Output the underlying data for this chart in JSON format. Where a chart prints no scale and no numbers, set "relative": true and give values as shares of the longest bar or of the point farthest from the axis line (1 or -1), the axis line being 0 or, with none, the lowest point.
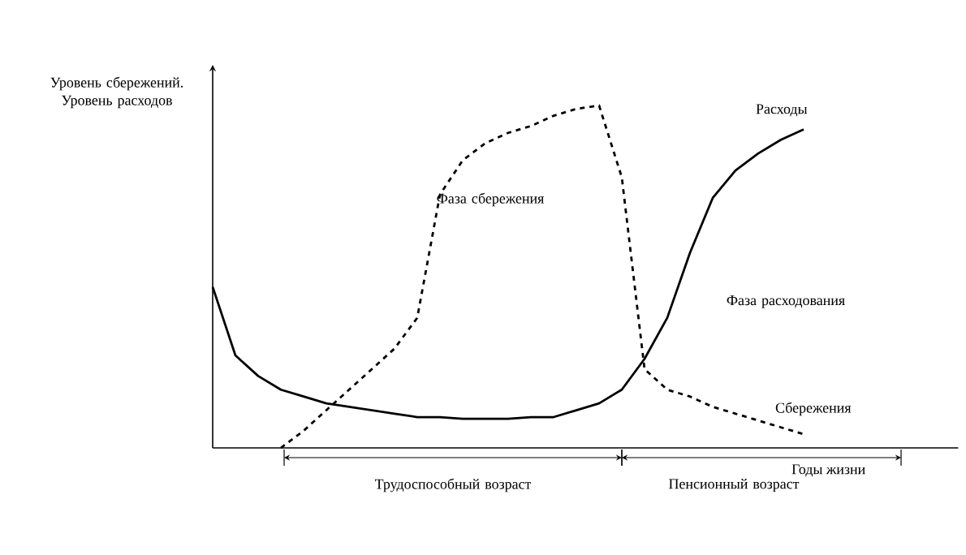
{
  "chart_data": {
    "type": "line",
    "relative": true,
    "tick_labels": false,
    "ylabel": "Уровень сбережений. Уровень расходов",
    "xlabel": "Годы жизни",
    "categories": [
      null,
      null,
      null,
      null,
      null,
      null,
      null,
      null,
      null,
      null,
      null,
      null,
      null,
      null,
      null,
      null,
      null,
      null,
      null,
      null,
      null,
      null,
      null,
      null,
      null,
      null,
      null
    ],
    "series": [
      {
        "name": "Расходы",
        "color": "#000000",
        "line_style": "solid",
        "values": [
          0.47,
          0.27,
          0.21,
          0.17,
          0.15,
          0.13,
          0.12,
          0.11,
          0.1,
          0.09,
          0.09,
          0.085,
          0.085,
          0.085,
          0.09,
          0.09,
          0.11,
          0.13,
          0.17,
          0.26,
          0.38,
          0.57,
          0.73,
          0.81,
          0.86,
          0.9,
          0.93
        ]
      },
      {
        "name": "Сбережения",
        "color": "#000000",
        "line_style": "dashed",
        "values": [
          null,
          null,
          null,
          0.0,
          0.05,
          0.11,
          0.17,
          0.23,
          0.29,
          0.38,
          0.74,
          0.84,
          0.89,
          0.92,
          0.94,
          0.97,
          0.99,
          1.0,
          0.79,
          0.23,
          0.17,
          0.15,
          0.12,
          0.1,
          0.08,
          0.06,
          0.04
        ]
      }
    ],
    "annotations": [
      "Фаза сбережения",
      "Фаза расходования",
      "Трудоспособный возраст",
      "Пенсионный возраст"
    ]
  }
}
